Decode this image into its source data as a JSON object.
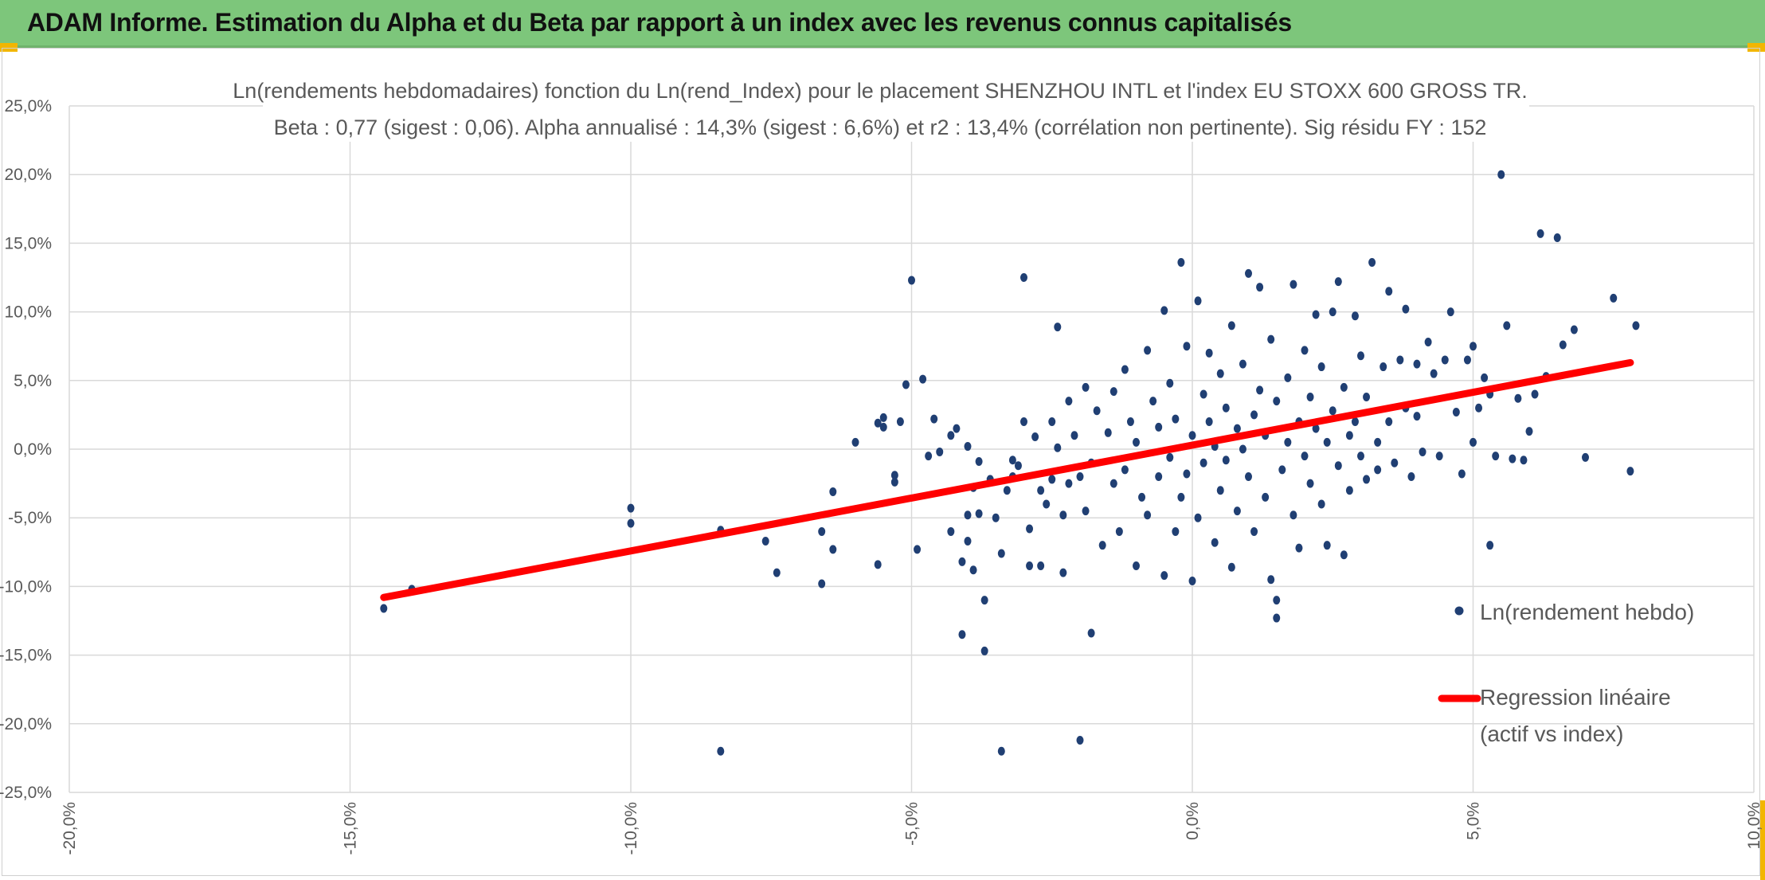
{
  "banner": {
    "title": "ADAM Informe. Estimation du Alpha et du Beta par rapport à un index avec les revenus connus capitalisés"
  },
  "colors": {
    "banner_bg": "#7dc67b",
    "point": "#203f73",
    "regression": "#ff0000",
    "grid": "#d9d9d9",
    "accent": "#f2b600"
  },
  "chart_data": {
    "type": "scatter",
    "title_line1": "Ln(rendements hebdomadaires) fonction du Ln(rend_Index) pour le placement SHENZHOU INTL et l'index EU STOXX 600 GROSS TR.",
    "title_line2": "Beta : 0,77 (sigest : 0,06). Alpha annualisé : 14,3% (sigest : 6,6%) et r2 : 13,4% (corrélation non pertinente). Sig résidu FY : 152",
    "xlim": [
      -0.2,
      0.1
    ],
    "ylim": [
      -0.25,
      0.25
    ],
    "x_ticks": [
      -0.2,
      -0.15,
      -0.1,
      -0.05,
      0.0,
      0.05,
      0.1
    ],
    "x_tick_labels": [
      "-20,0%",
      "-15,0%",
      "-10,0%",
      "-5,0%",
      "0,0%",
      "5,0%",
      "10,0%"
    ],
    "y_ticks": [
      0.25,
      0.2,
      0.15,
      0.1,
      0.05,
      0.0,
      -0.05,
      -0.1,
      -0.15,
      -0.2,
      -0.25
    ],
    "y_tick_labels": [
      "25,0%",
      "20,0%",
      "15,0%",
      "10,0%",
      "5,0%",
      "0,0%",
      "-5,0%",
      "-10,0%",
      "-15,0%",
      "-20,0%",
      "-25,0%"
    ],
    "grid": true,
    "legend_position": "right",
    "series": [
      {
        "name": "Ln(rendement hebdo)",
        "type": "scatter",
        "points": [
          [
            -0.144,
            -0.116
          ],
          [
            -0.139,
            -0.102
          ],
          [
            -0.1,
            -0.043
          ],
          [
            -0.1,
            -0.054
          ],
          [
            -0.084,
            -0.059
          ],
          [
            -0.084,
            -0.22
          ],
          [
            -0.076,
            -0.067
          ],
          [
            -0.074,
            -0.09
          ],
          [
            -0.066,
            -0.098
          ],
          [
            -0.064,
            -0.073
          ],
          [
            -0.064,
            -0.031
          ],
          [
            -0.066,
            -0.06
          ],
          [
            -0.06,
            0.005
          ],
          [
            -0.056,
            0.019
          ],
          [
            -0.055,
            0.023
          ],
          [
            -0.055,
            0.016
          ],
          [
            -0.053,
            -0.019
          ],
          [
            -0.053,
            -0.024
          ],
          [
            -0.052,
            0.02
          ],
          [
            -0.051,
            0.047
          ],
          [
            -0.056,
            -0.084
          ],
          [
            -0.05,
            0.123
          ],
          [
            -0.049,
            -0.073
          ],
          [
            -0.048,
            0.051
          ],
          [
            -0.047,
            -0.005
          ],
          [
            -0.046,
            0.022
          ],
          [
            -0.045,
            -0.002
          ],
          [
            -0.043,
            0.01
          ],
          [
            -0.043,
            -0.06
          ],
          [
            -0.042,
            0.015
          ],
          [
            -0.041,
            -0.082
          ],
          [
            -0.041,
            -0.135
          ],
          [
            -0.04,
            -0.067
          ],
          [
            -0.04,
            0.002
          ],
          [
            -0.04,
            -0.048
          ],
          [
            -0.039,
            -0.028
          ],
          [
            -0.039,
            -0.088
          ],
          [
            -0.038,
            -0.047
          ],
          [
            -0.038,
            -0.009
          ],
          [
            -0.037,
            -0.11
          ],
          [
            -0.037,
            -0.147
          ],
          [
            -0.036,
            -0.022
          ],
          [
            -0.035,
            -0.05
          ],
          [
            -0.034,
            -0.076
          ],
          [
            -0.034,
            -0.22
          ],
          [
            -0.033,
            -0.03
          ],
          [
            -0.032,
            -0.02
          ],
          [
            -0.032,
            -0.008
          ],
          [
            -0.031,
            -0.012
          ],
          [
            -0.03,
            0.125
          ],
          [
            -0.03,
            0.02
          ],
          [
            -0.029,
            -0.058
          ],
          [
            -0.029,
            -0.085
          ],
          [
            -0.028,
            0.009
          ],
          [
            -0.027,
            -0.085
          ],
          [
            -0.027,
            -0.03
          ],
          [
            -0.026,
            -0.04
          ],
          [
            -0.025,
            0.02
          ],
          [
            -0.025,
            -0.022
          ],
          [
            -0.024,
            0.089
          ],
          [
            -0.024,
            0.001
          ],
          [
            -0.023,
            -0.09
          ],
          [
            -0.023,
            -0.048
          ],
          [
            -0.022,
            0.035
          ],
          [
            -0.022,
            -0.025
          ],
          [
            -0.021,
            0.01
          ],
          [
            -0.02,
            -0.02
          ],
          [
            -0.02,
            -0.212
          ],
          [
            -0.019,
            0.045
          ],
          [
            -0.019,
            -0.045
          ],
          [
            -0.018,
            -0.134
          ],
          [
            -0.018,
            -0.01
          ],
          [
            -0.017,
            0.028
          ],
          [
            -0.016,
            -0.07
          ],
          [
            -0.015,
            0.012
          ],
          [
            -0.014,
            -0.025
          ],
          [
            -0.014,
            0.042
          ],
          [
            -0.013,
            -0.06
          ],
          [
            -0.012,
            0.058
          ],
          [
            -0.012,
            -0.015
          ],
          [
            -0.011,
            0.02
          ],
          [
            -0.01,
            -0.085
          ],
          [
            -0.01,
            0.005
          ],
          [
            -0.009,
            -0.035
          ],
          [
            -0.008,
            0.072
          ],
          [
            -0.008,
            -0.048
          ],
          [
            -0.007,
            0.035
          ],
          [
            -0.006,
            -0.02
          ],
          [
            -0.006,
            0.016
          ],
          [
            -0.005,
            -0.092
          ],
          [
            -0.005,
            0.101
          ],
          [
            -0.004,
            -0.006
          ],
          [
            -0.004,
            0.048
          ],
          [
            -0.003,
            -0.06
          ],
          [
            -0.003,
            0.022
          ],
          [
            -0.002,
            -0.035
          ],
          [
            -0.002,
            0.136
          ],
          [
            -0.001,
            0.075
          ],
          [
            -0.001,
            -0.018
          ],
          [
            0.0,
            0.01
          ],
          [
            0.0,
            -0.096
          ],
          [
            0.001,
            0.108
          ],
          [
            0.001,
            -0.05
          ],
          [
            0.002,
            0.04
          ],
          [
            0.002,
            -0.01
          ],
          [
            0.003,
            0.07
          ],
          [
            0.003,
            0.02
          ],
          [
            0.004,
            -0.068
          ],
          [
            0.004,
            0.002
          ],
          [
            0.005,
            0.055
          ],
          [
            0.005,
            -0.03
          ],
          [
            0.006,
            0.03
          ],
          [
            0.006,
            -0.008
          ],
          [
            0.007,
            0.09
          ],
          [
            0.007,
            -0.086
          ],
          [
            0.008,
            0.015
          ],
          [
            0.008,
            -0.045
          ],
          [
            0.009,
            0.062
          ],
          [
            0.009,
            0.0
          ],
          [
            0.01,
            0.128
          ],
          [
            0.01,
            -0.02
          ],
          [
            0.011,
            0.025
          ],
          [
            0.011,
            -0.06
          ],
          [
            0.012,
            0.043
          ],
          [
            0.012,
            0.118
          ],
          [
            0.013,
            -0.035
          ],
          [
            0.013,
            0.01
          ],
          [
            0.014,
            0.08
          ],
          [
            0.014,
            -0.095
          ],
          [
            0.015,
            -0.11
          ],
          [
            0.015,
            -0.123
          ],
          [
            0.015,
            0.035
          ],
          [
            0.016,
            -0.015
          ],
          [
            0.017,
            0.052
          ],
          [
            0.017,
            0.005
          ],
          [
            0.018,
            0.12
          ],
          [
            0.018,
            -0.048
          ],
          [
            0.019,
            0.02
          ],
          [
            0.019,
            -0.072
          ],
          [
            0.02,
            0.072
          ],
          [
            0.02,
            -0.005
          ],
          [
            0.021,
            0.038
          ],
          [
            0.021,
            -0.025
          ],
          [
            0.022,
            0.015
          ],
          [
            0.022,
            0.098
          ],
          [
            0.023,
            -0.04
          ],
          [
            0.023,
            0.06
          ],
          [
            0.024,
            0.005
          ],
          [
            0.024,
            -0.07
          ],
          [
            0.025,
            0.1
          ],
          [
            0.025,
            0.028
          ],
          [
            0.026,
            -0.012
          ],
          [
            0.026,
            0.122
          ],
          [
            0.027,
            -0.077
          ],
          [
            0.027,
            0.045
          ],
          [
            0.028,
            0.01
          ],
          [
            0.028,
            -0.03
          ],
          [
            0.029,
            0.097
          ],
          [
            0.029,
            0.02
          ],
          [
            0.03,
            0.068
          ],
          [
            0.03,
            -0.005
          ],
          [
            0.031,
            -0.022
          ],
          [
            0.031,
            0.038
          ],
          [
            0.032,
            0.136
          ],
          [
            0.033,
            0.005
          ],
          [
            0.033,
            -0.015
          ],
          [
            0.034,
            0.06
          ],
          [
            0.035,
            0.115
          ],
          [
            0.035,
            0.02
          ],
          [
            0.036,
            -0.01
          ],
          [
            0.037,
            0.065
          ],
          [
            0.038,
            0.102
          ],
          [
            0.038,
            0.03
          ],
          [
            0.039,
            -0.02
          ],
          [
            0.04,
            0.062
          ],
          [
            0.04,
            0.024
          ],
          [
            0.041,
            -0.002
          ],
          [
            0.042,
            0.078
          ],
          [
            0.043,
            0.055
          ],
          [
            0.044,
            -0.005
          ],
          [
            0.045,
            0.065
          ],
          [
            0.046,
            0.1
          ],
          [
            0.047,
            0.027
          ],
          [
            0.048,
            -0.018
          ],
          [
            0.049,
            0.065
          ],
          [
            0.05,
            0.075
          ],
          [
            0.05,
            0.005
          ],
          [
            0.051,
            0.03
          ],
          [
            0.052,
            0.052
          ],
          [
            0.053,
            0.04
          ],
          [
            0.053,
            -0.07
          ],
          [
            0.054,
            -0.005
          ],
          [
            0.055,
            0.2
          ],
          [
            0.056,
            0.09
          ],
          [
            0.057,
            -0.007
          ],
          [
            0.058,
            0.037
          ],
          [
            0.059,
            -0.008
          ],
          [
            0.06,
            0.013
          ],
          [
            0.061,
            0.04
          ],
          [
            0.062,
            0.157
          ],
          [
            0.063,
            0.053
          ],
          [
            0.065,
            0.154
          ],
          [
            0.066,
            0.076
          ],
          [
            0.068,
            0.087
          ],
          [
            0.07,
            -0.006
          ],
          [
            0.075,
            0.11
          ],
          [
            0.078,
            -0.016
          ],
          [
            0.079,
            0.09
          ]
        ]
      },
      {
        "name": "Regression linéaire\n(actif vs index)",
        "type": "line",
        "points": [
          [
            -0.144,
            -0.108
          ],
          [
            0.078,
            0.063
          ]
        ]
      }
    ]
  },
  "legend": {
    "scatter_label": "Ln(rendement hebdo)",
    "line_label_1": "Regression linéaire",
    "line_label_2": "(actif vs index)"
  }
}
